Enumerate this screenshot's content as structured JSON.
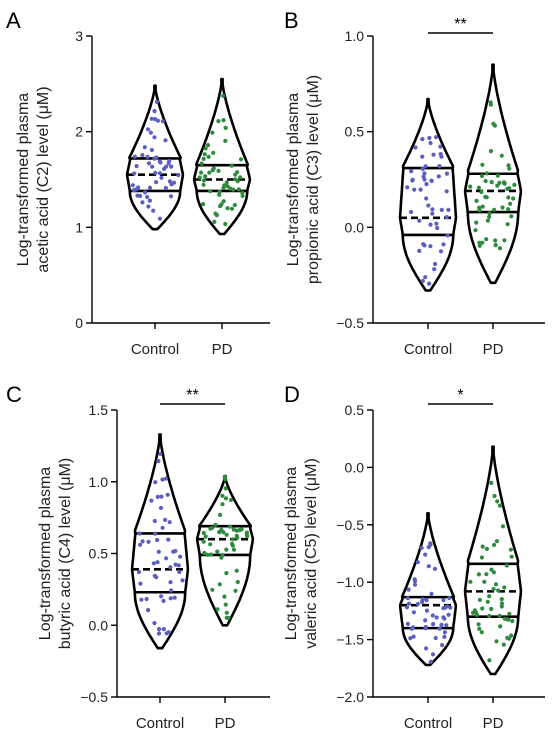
{
  "colors": {
    "control_dots": "#5a5fc0",
    "pd_dots": "#2e8b3e",
    "violin": "#000000"
  },
  "categories": [
    "Control",
    "PD"
  ],
  "chart_data": [
    {
      "panel": "A",
      "type": "violin",
      "ylabel": [
        "Log-transformed plasma",
        "acetic acid (C2) level (μM)"
      ],
      "ylim": [
        0,
        3
      ],
      "yticks": [
        0,
        1,
        2,
        3
      ],
      "ytick_labels": [
        "0",
        "1",
        "2",
        "3"
      ],
      "significance": null,
      "series": [
        {
          "category": "Control",
          "min": 0.98,
          "max": 2.48,
          "q1": 1.38,
          "median": 1.55,
          "q3": 1.72
        },
        {
          "category": "PD",
          "min": 0.93,
          "max": 2.55,
          "q1": 1.38,
          "median": 1.5,
          "q3": 1.65
        }
      ]
    },
    {
      "panel": "B",
      "type": "violin",
      "ylabel": [
        "Log-transformed plasma",
        "propionic  acid (C3) level (μM)"
      ],
      "ylim": [
        -0.5,
        1.0
      ],
      "yticks": [
        -0.5,
        0,
        0.5,
        1.0
      ],
      "ytick_labels": [
        "−0.5",
        "0.0",
        "0.5",
        "1.0"
      ],
      "significance": "**",
      "series": [
        {
          "category": "Control",
          "min": -0.33,
          "max": 0.67,
          "q1": -0.04,
          "median": 0.05,
          "q3": 0.31
        },
        {
          "category": "PD",
          "min": -0.29,
          "max": 0.85,
          "q1": 0.08,
          "median": 0.19,
          "q3": 0.28
        }
      ]
    },
    {
      "panel": "C",
      "type": "violin",
      "ylabel": [
        "Log-transformed plasma",
        "butyric  acid (C4) level (μM)"
      ],
      "ylim": [
        -0.5,
        1.5
      ],
      "yticks": [
        -0.5,
        0,
        0.5,
        1.0,
        1.5
      ],
      "ytick_labels": [
        "−0.5",
        "0.0",
        "0.5",
        "1.0",
        "1.5"
      ],
      "significance": "**",
      "series": [
        {
          "category": "Control",
          "min": -0.16,
          "max": 1.33,
          "q1": 0.23,
          "median": 0.39,
          "q3": 0.64
        },
        {
          "category": "PD",
          "min": 0.0,
          "max": 1.04,
          "q1": 0.49,
          "median": 0.6,
          "q3": 0.69
        }
      ]
    },
    {
      "panel": "D",
      "type": "violin",
      "ylabel": [
        "Log-transformed plasma",
        "valeric acid (C5) level (μM)"
      ],
      "ylim": [
        -2.0,
        0.5
      ],
      "yticks": [
        -2.0,
        -1.5,
        -1.0,
        -0.5,
        0.0,
        0.5
      ],
      "ytick_labels": [
        "−2.0",
        "−1.5",
        "−1.0",
        "−0.5",
        "0.0",
        "0.5"
      ],
      "significance": "*",
      "series": [
        {
          "category": "Control",
          "min": -1.72,
          "max": -0.4,
          "q1": -1.4,
          "median": -1.2,
          "q3": -1.13
        },
        {
          "category": "PD",
          "min": -1.8,
          "max": 0.18,
          "q1": -1.3,
          "median": -1.08,
          "q3": -0.84
        }
      ]
    }
  ]
}
